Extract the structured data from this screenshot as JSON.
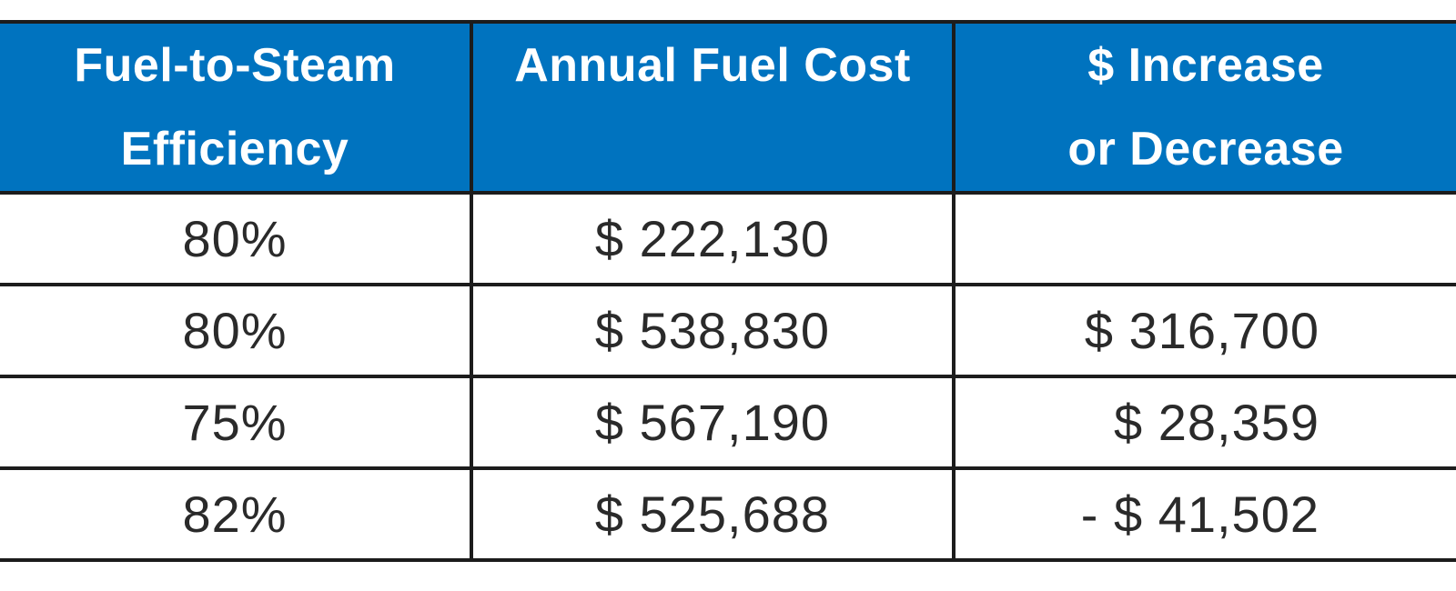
{
  "table": {
    "headers": [
      {
        "line1": "Fuel-to-Steam",
        "line2": "Efficiency"
      },
      {
        "line1": "Annual Fuel Cost",
        "line2": ""
      },
      {
        "line1": "$ Increase",
        "line2": "or Decrease"
      }
    ],
    "rows": [
      {
        "efficiency": "80%",
        "annual_fuel_cost": "$ 222,130",
        "change": ""
      },
      {
        "efficiency": "80%",
        "annual_fuel_cost": "$ 538,830",
        "change": "$ 316,700"
      },
      {
        "efficiency": "75%",
        "annual_fuel_cost": "$ 567,190",
        "change": "$ 28,359"
      },
      {
        "efficiency": "82%",
        "annual_fuel_cost": "$ 525,688",
        "change": "- $ 41,502"
      }
    ]
  },
  "colors": {
    "header_background": "#0073bf",
    "header_text": "#ffffff",
    "border": "#1c1c1c",
    "cell_text": "#2a2a2a"
  }
}
